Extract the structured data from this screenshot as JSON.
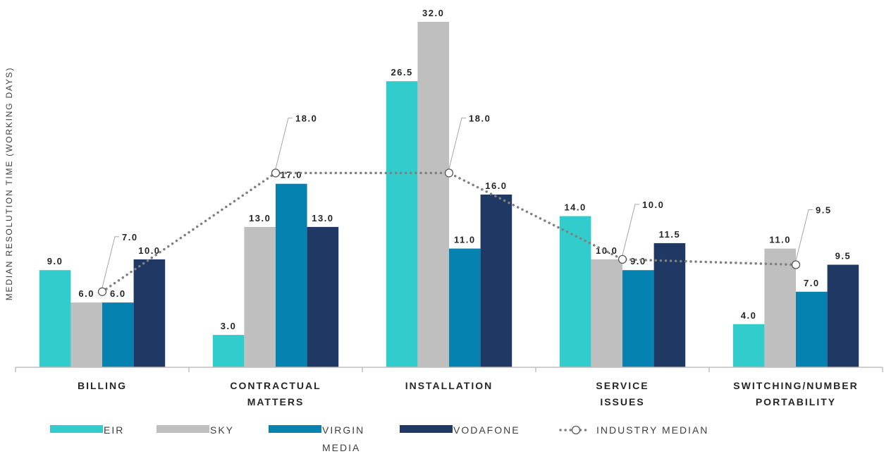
{
  "chart_data": {
    "type": "bar",
    "title": "",
    "xlabel": "",
    "ylabel": "MEDIAN RESOLUTION TIME (WORKING DAYS)",
    "ylim": [
      0,
      33
    ],
    "grid": false,
    "legend_position": "bottom",
    "categories": [
      [
        "BILLING"
      ],
      [
        "CONTRACTUAL",
        "MATTERS"
      ],
      [
        "INSTALLATION"
      ],
      [
        "SERVICE",
        "ISSUES"
      ],
      [
        "SWITCHING/NUMBER",
        "PORTABILITY"
      ]
    ],
    "series": [
      {
        "name": "EIR",
        "color": "#33cccc",
        "values": [
          9.0,
          3.0,
          26.5,
          14.0,
          4.0
        ]
      },
      {
        "name": "SKY",
        "color": "#bfbfbf",
        "values": [
          6.0,
          13.0,
          32.0,
          10.0,
          11.0
        ]
      },
      {
        "name": "VIRGIN MEDIA",
        "legend_lines": [
          "VIRGIN",
          "MEDIA"
        ],
        "color": "#0682b0",
        "values": [
          6.0,
          17.0,
          11.0,
          9.0,
          7.0
        ]
      },
      {
        "name": "VODAFONE",
        "color": "#203864",
        "values": [
          10.0,
          13.0,
          16.0,
          11.5,
          9.5
        ]
      }
    ],
    "line_series": {
      "name": "INDUSTRY MEDIAN",
      "color": "#808080",
      "style": "dotted",
      "values": [
        7.0,
        18.0,
        18.0,
        10.0,
        9.5
      ]
    },
    "value_format_decimals": 1
  }
}
